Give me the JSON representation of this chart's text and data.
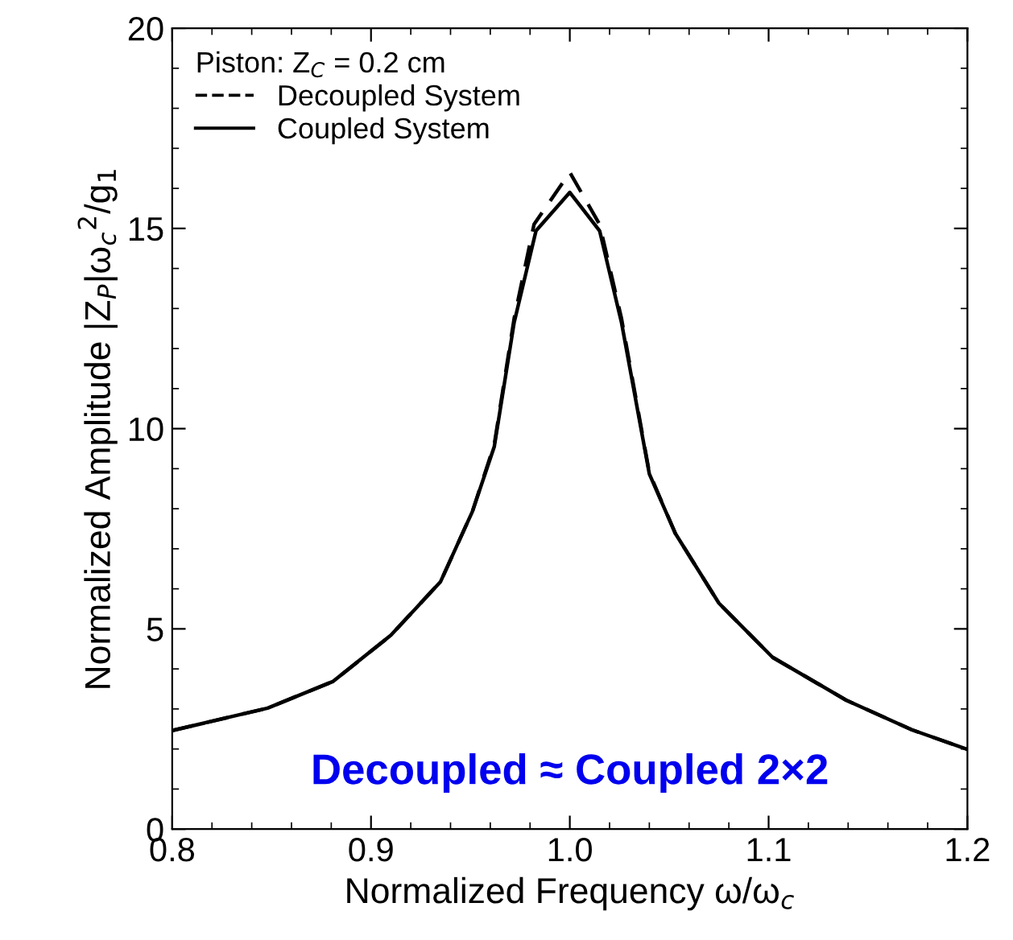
{
  "chart_data": {
    "type": "line",
    "xlabel": "Normalized Frequency ω/ω$_{c}$",
    "ylabel": "Normalized Amplitude |Z$_{P}$|ω$_{c}$$^{2}$/g$_{1}$",
    "legend_title": "Piston: Z$_{C}$ = 0.2 cm",
    "annotations": [
      "Decoupled ≈ Coupled 2×2"
    ],
    "xlim": [
      0.8,
      1.2
    ],
    "ylim": [
      0,
      20
    ],
    "xticks": [
      {
        "value": 0.8,
        "label": "0.8"
      },
      {
        "value": 0.9,
        "label": "0.9"
      },
      {
        "value": 1.0,
        "label": "1.0"
      },
      {
        "value": 1.1,
        "label": "1.1"
      },
      {
        "value": 1.2,
        "label": "1.2"
      }
    ],
    "yticks": [
      0,
      5,
      10,
      15,
      20
    ],
    "legend": "top left",
    "grid": false,
    "marker": "none",
    "series": [
      {
        "name": "Decoupled System",
        "color": "#000000",
        "line_style": "dashed",
        "x": [
          0.8,
          0.848,
          0.881,
          0.91,
          0.935,
          0.951,
          0.962,
          0.972,
          0.982,
          1.0,
          1.015,
          1.026,
          1.04,
          1.053,
          1.075,
          1.102,
          1.139,
          1.172,
          1.2
        ],
        "values": [
          2.46,
          3.02,
          3.69,
          4.84,
          6.18,
          7.93,
          9.6,
          12.75,
          15.1,
          16.4,
          15.1,
          12.75,
          8.9,
          7.39,
          5.64,
          4.29,
          3.22,
          2.48,
          1.99
        ]
      },
      {
        "name": "Coupled System",
        "color": "#000000",
        "line_style": "solid",
        "x": [
          0.8,
          0.848,
          0.881,
          0.91,
          0.935,
          0.951,
          0.962,
          0.972,
          0.983,
          1.0,
          1.015,
          1.026,
          1.04,
          1.053,
          1.075,
          1.102,
          1.139,
          1.172,
          1.2
        ],
        "values": [
          2.46,
          3.02,
          3.69,
          4.84,
          6.18,
          7.93,
          9.55,
          12.65,
          14.94,
          15.9,
          14.94,
          12.65,
          8.87,
          7.39,
          5.64,
          4.29,
          3.22,
          2.48,
          1.99
        ]
      }
    ]
  }
}
